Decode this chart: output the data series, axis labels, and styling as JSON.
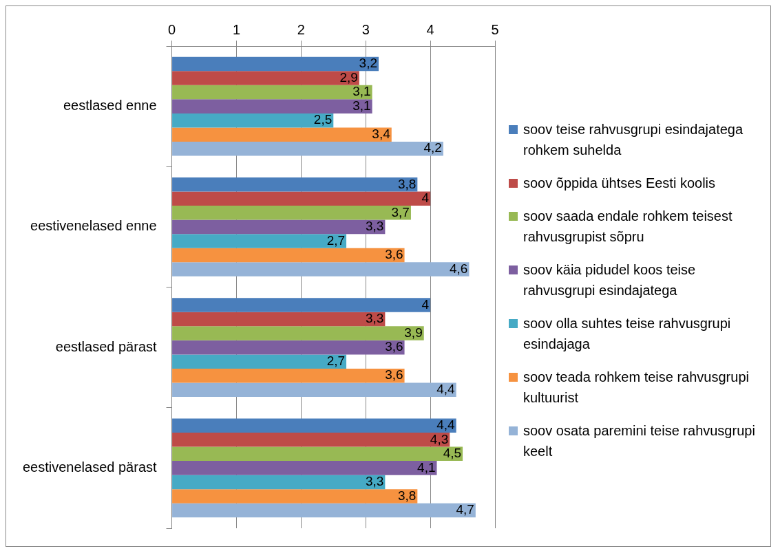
{
  "chart_data": {
    "type": "bar",
    "orientation": "horizontal",
    "categories": [
      "eestlased enne",
      "eestivenelased enne",
      "eestlased pärast",
      "eestivenelased pärast"
    ],
    "series": [
      {
        "name": "soov teise rahvusgrupi esindajatega rohkem suhelda",
        "color": "#4a7ebb",
        "values": [
          3.2,
          3.8,
          4,
          4.4
        ],
        "value_labels": [
          "3,2",
          "3,8",
          "4",
          "4,4"
        ]
      },
      {
        "name": "soov õppida ühtses Eesti koolis",
        "color": "#be4b48",
        "values": [
          2.9,
          4,
          3.3,
          4.3
        ],
        "value_labels": [
          "2,9",
          "4",
          "3,3",
          "4,3"
        ]
      },
      {
        "name": "soov saada endale rohkem teisest rahvusgrupist sõpru",
        "color": "#98b954",
        "values": [
          3.1,
          3.7,
          3.9,
          4.5
        ],
        "value_labels": [
          "3,1",
          "3,7",
          "3,9",
          "4,5"
        ]
      },
      {
        "name": "soov käia pidudel koos teise rahvusgrupi esindajatega",
        "color": "#7d5fa0",
        "values": [
          3.1,
          3.3,
          3.6,
          4.1
        ],
        "value_labels": [
          "3,1",
          "3,3",
          "3,6",
          "4,1"
        ]
      },
      {
        "name": "soov olla suhtes teise rahvusgrupi esindajaga",
        "color": "#46aac5",
        "values": [
          2.5,
          2.7,
          2.7,
          3.3
        ],
        "value_labels": [
          "2,5",
          "2,7",
          "2,7",
          "3,3"
        ]
      },
      {
        "name": "soov teada rohkem teise rahvusgrupi kultuurist",
        "color": "#f69240",
        "values": [
          3.4,
          3.6,
          3.6,
          3.8
        ],
        "value_labels": [
          "3,4",
          "3,6",
          "3,6",
          "3,8"
        ]
      },
      {
        "name": "soov osata paremini teise rahvusgrupi keelt",
        "color": "#95b3d7",
        "values": [
          4.2,
          4.6,
          4.4,
          4.7
        ],
        "value_labels": [
          "4,2",
          "4,6",
          "4,4",
          "4,7"
        ]
      }
    ],
    "xlim": [
      0,
      5
    ],
    "xticks": [
      0,
      1,
      2,
      3,
      4,
      5
    ],
    "grid": "x",
    "legend": "right"
  }
}
